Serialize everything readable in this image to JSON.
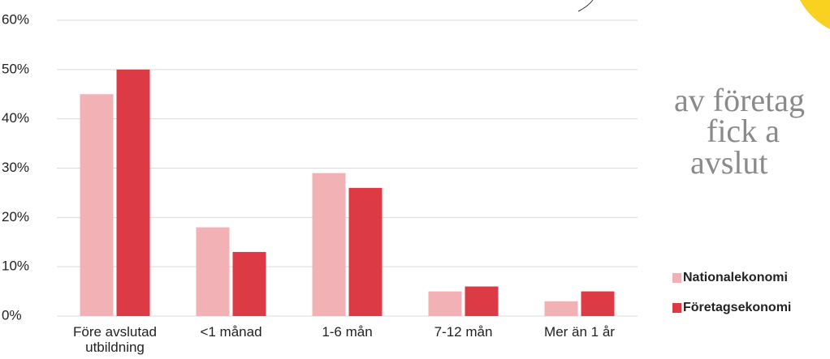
{
  "chart_data": {
    "type": "bar",
    "categories": [
      "Före avslutad utbildning",
      "<1 månad",
      "1-6  mån",
      "7-12 mån",
      "Mer än 1 år"
    ],
    "series": [
      {
        "name": "Nationalekonomi",
        "color": "#f1b1b5",
        "values": [
          45,
          18,
          29,
          5,
          3
        ]
      },
      {
        "name": "Företagsekonomi",
        "color": "#dc3a45",
        "values": [
          50,
          13,
          26,
          6,
          5
        ]
      }
    ],
    "ylim": [
      0,
      60
    ],
    "yticks": [
      {
        "value": 0,
        "label": "0%"
      },
      {
        "value": 10,
        "label": "10%"
      },
      {
        "value": 20,
        "label": "20%"
      },
      {
        "value": 30,
        "label": "30%"
      },
      {
        "value": 40,
        "label": "40%"
      },
      {
        "value": 50,
        "label": "50%"
      },
      {
        "value": 60,
        "label": "60%"
      }
    ],
    "grid": true
  },
  "side_text": [
    "av företag",
    "fick a",
    "avslut"
  ]
}
